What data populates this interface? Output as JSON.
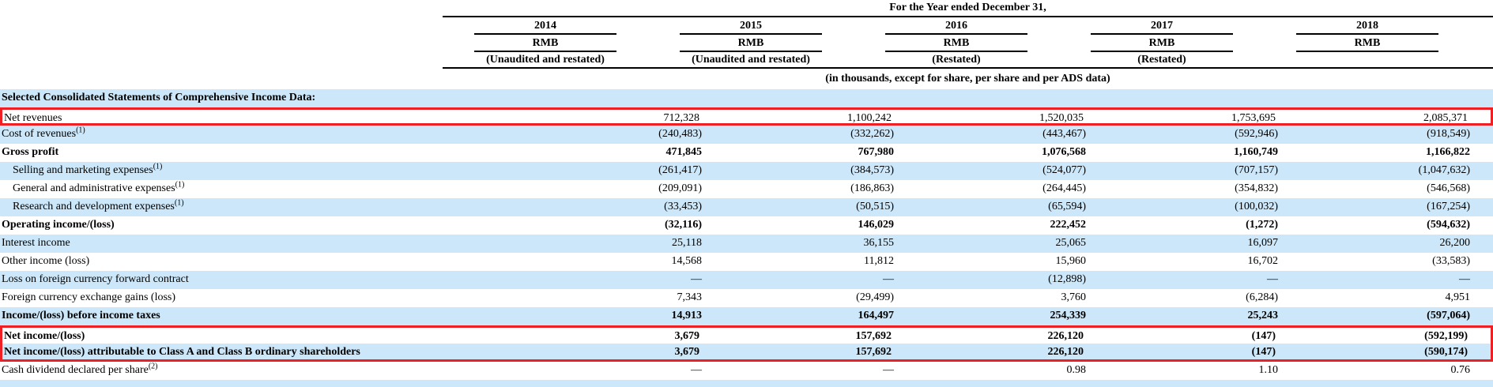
{
  "header": {
    "span_title": "For the Year ended December 31,",
    "columns": [
      {
        "year": "2014",
        "currency": "RMB",
        "note": "(Unaudited and restated)"
      },
      {
        "year": "2015",
        "currency": "RMB",
        "note": "(Unaudited and restated)"
      },
      {
        "year": "2016",
        "currency": "RMB",
        "note": "(Restated)"
      },
      {
        "year": "2017",
        "currency": "RMB",
        "note": "(Restated)"
      },
      {
        "year": "2018",
        "currency": "RMB",
        "note": ""
      }
    ],
    "units_note": "(in thousands, except for share, per share and per ADS data)"
  },
  "table": {
    "section_title": "Selected Consolidated Statements of Comprehensive Income Data:",
    "rows": [
      {
        "label": "Net revenues",
        "sup": "",
        "bold": false,
        "indent": false,
        "box": "single",
        "values": [
          "712,328",
          "1,100,242",
          "1,520,035",
          "1,753,695",
          "2,085,371"
        ]
      },
      {
        "label": "Cost of revenues",
        "sup": "(1)",
        "bold": false,
        "indent": false,
        "box": "",
        "values": [
          "(240,483)",
          "(332,262)",
          "(443,467)",
          "(592,946)",
          "(918,549)"
        ]
      },
      {
        "label": "Gross profit",
        "sup": "",
        "bold": true,
        "indent": false,
        "box": "",
        "values": [
          "471,845",
          "767,980",
          "1,076,568",
          "1,160,749",
          "1,166,822"
        ]
      },
      {
        "label": "Selling and marketing expenses",
        "sup": "(1)",
        "bold": false,
        "indent": true,
        "box": "",
        "values": [
          "(261,417)",
          "(384,573)",
          "(524,077)",
          "(707,157)",
          "(1,047,632)"
        ]
      },
      {
        "label": "General and administrative expenses",
        "sup": "(1)",
        "bold": false,
        "indent": true,
        "box": "",
        "values": [
          "(209,091)",
          "(186,863)",
          "(264,445)",
          "(354,832)",
          "(546,568)"
        ]
      },
      {
        "label": "Research and development expenses",
        "sup": "(1)",
        "bold": false,
        "indent": true,
        "box": "",
        "values": [
          "(33,453)",
          "(50,515)",
          "(65,594)",
          "(100,032)",
          "(167,254)"
        ]
      },
      {
        "label": "Operating income/(loss)",
        "sup": "",
        "bold": true,
        "indent": false,
        "box": "",
        "values": [
          "(32,116)",
          "146,029",
          "222,452",
          "(1,272)",
          "(594,632)"
        ]
      },
      {
        "label": "Interest income",
        "sup": "",
        "bold": false,
        "indent": false,
        "box": "",
        "values": [
          "25,118",
          "36,155",
          "25,065",
          "16,097",
          "26,200"
        ]
      },
      {
        "label": "Other income (loss)",
        "sup": "",
        "bold": false,
        "indent": false,
        "box": "",
        "values": [
          "14,568",
          "11,812",
          "15,960",
          "16,702",
          "(33,583)"
        ]
      },
      {
        "label": "Loss on foreign currency forward contract",
        "sup": "",
        "bold": false,
        "indent": false,
        "box": "",
        "values": [
          "—",
          "—",
          "(12,898)",
          "—",
          "—"
        ]
      },
      {
        "label": "Foreign currency exchange gains (loss)",
        "sup": "",
        "bold": false,
        "indent": false,
        "box": "",
        "values": [
          "7,343",
          "(29,499)",
          "3,760",
          "(6,284)",
          "4,951"
        ]
      },
      {
        "label": "Income/(loss) before income taxes",
        "sup": "",
        "bold": true,
        "indent": false,
        "box": "",
        "values": [
          "14,913",
          "164,497",
          "254,339",
          "25,243",
          "(597,064)"
        ]
      },
      {
        "label": "Net income/(loss)",
        "sup": "",
        "bold": true,
        "indent": false,
        "box": "top",
        "values": [
          "3,679",
          "157,692",
          "226,120",
          "(147)",
          "(592,199)"
        ]
      },
      {
        "label": "Net income/(loss) attributable to Class A and Class B ordinary shareholders",
        "sup": "",
        "bold": true,
        "indent": false,
        "box": "bottom",
        "values": [
          "3,679",
          "157,692",
          "226,120",
          "(147)",
          "(590,174)"
        ]
      },
      {
        "label": "Cash dividend declared per share",
        "sup": "(2)",
        "bold": false,
        "indent": false,
        "box": "",
        "values": [
          "—",
          "—",
          "0.98",
          "1.10",
          "0.76"
        ]
      }
    ]
  },
  "colors": {
    "row_highlight_blue": "#cbe7f9",
    "annotation_red": "#ee2024",
    "rule_black": "#000000"
  }
}
